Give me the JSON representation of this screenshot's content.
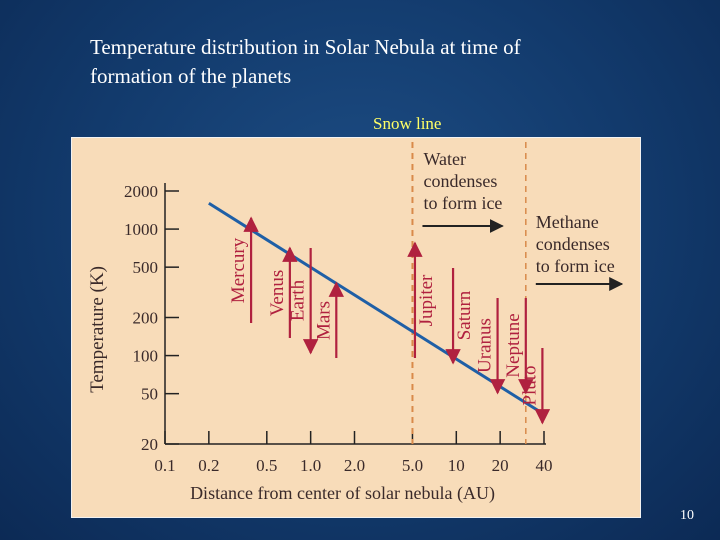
{
  "slide": {
    "title_line1": "Temperature distribution in Solar Nebula at time of",
    "title_line2": "formation of the planets",
    "snow_line_label": "Snow line",
    "page_number": "10"
  },
  "colors": {
    "line": "#1f5fa6",
    "marker": "#b0213f",
    "snow_line": "#d98a4a",
    "text": "#3a2a2a",
    "plot_bg": "#f8dcb9"
  },
  "chart_data": {
    "type": "line",
    "xscale": "log",
    "yscale": "log",
    "xlim": [
      0.1,
      40
    ],
    "ylim": [
      20,
      2000
    ],
    "xlabel": "Distance from center of solar nebula (AU)",
    "ylabel": "Temperature (K)",
    "x_ticks": [
      0.1,
      0.2,
      0.5,
      1.0,
      2.0,
      5.0,
      10,
      20,
      40
    ],
    "x_tick_labels": [
      "0.1",
      "0.2",
      "0.5",
      "1.0",
      "2.0",
      "5.0",
      "10",
      "20",
      "40"
    ],
    "y_ticks": [
      2000,
      1000,
      500,
      200,
      100,
      50,
      20
    ],
    "y_tick_labels": [
      "2000",
      "1000",
      "500",
      "200",
      "100",
      "50",
      "20"
    ],
    "series": [
      {
        "x": [
          0.2,
          39
        ],
        "y": [
          1600,
          35
        ]
      }
    ],
    "reference_lines": [
      {
        "x": 5.0,
        "style": "dashed"
      },
      {
        "x": 30,
        "style": "dashed"
      }
    ],
    "annotations": [
      {
        "lines": [
          "Water",
          "condenses",
          "to form ice"
        ],
        "anchor_x": 5.0
      },
      {
        "lines": [
          "Methane",
          "condenses",
          "to form ice"
        ],
        "anchor_x": 30
      }
    ],
    "planets": [
      {
        "name": "Mercury",
        "x": 0.39,
        "direction": "up"
      },
      {
        "name": "Venus",
        "x": 0.72,
        "direction": "up"
      },
      {
        "name": "Earth",
        "x": 1.0,
        "direction": "down"
      },
      {
        "name": "Mars",
        "x": 1.5,
        "direction": "up"
      },
      {
        "name": "Jupiter",
        "x": 5.2,
        "direction": "up"
      },
      {
        "name": "Saturn",
        "x": 9.5,
        "direction": "down"
      },
      {
        "name": "Uranus",
        "x": 19.2,
        "direction": "down"
      },
      {
        "name": "Neptune",
        "x": 30,
        "direction": "down"
      },
      {
        "name": "Pluto",
        "x": 39,
        "direction": "down"
      }
    ]
  }
}
